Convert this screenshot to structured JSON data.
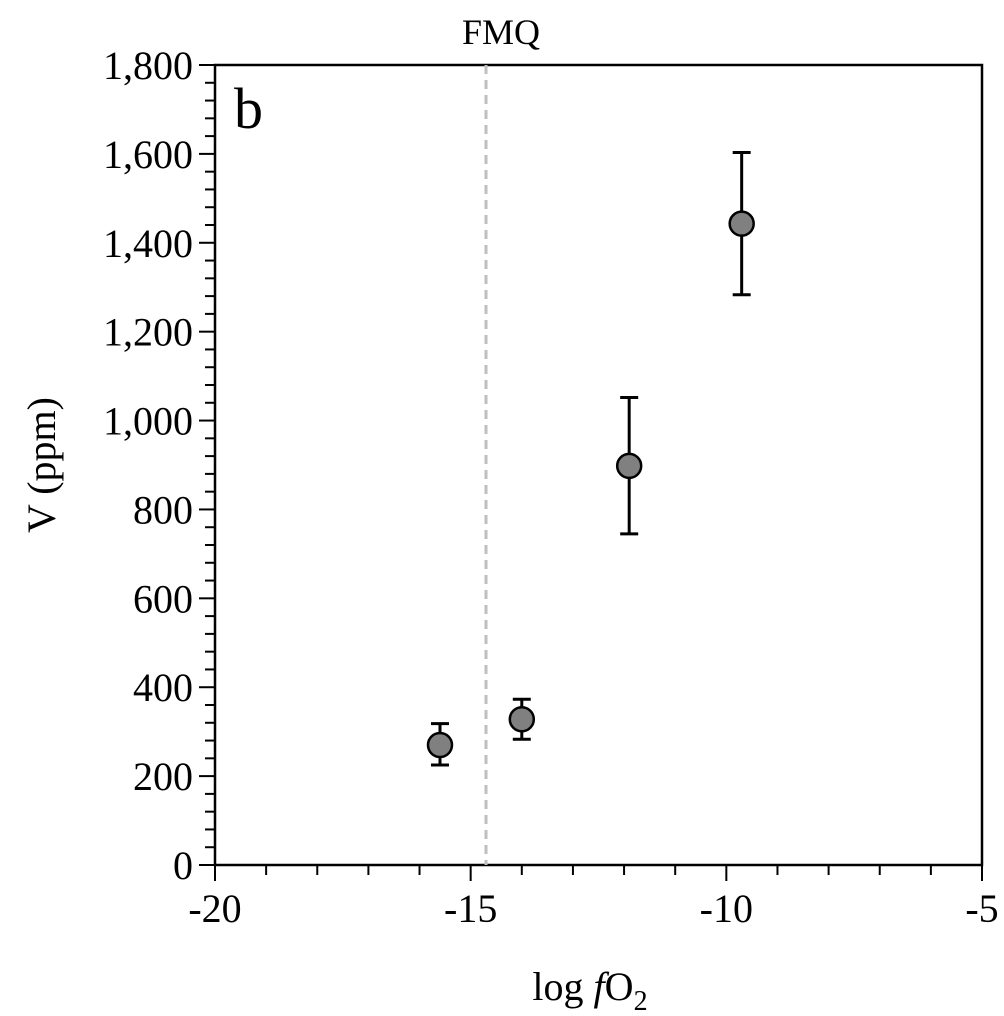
{
  "chart_data": {
    "type": "scatter",
    "panel_label": "b",
    "xlabel": {
      "prefix": "log ",
      "italic": "f",
      "main": "O",
      "sub": "2"
    },
    "ylabel": "V (ppm)",
    "xlim": [
      -20,
      -5
    ],
    "ylim": [
      0,
      1800
    ],
    "x_ticks": [
      -20,
      -15,
      -10,
      -5
    ],
    "x_tick_labels": [
      "-20",
      "-15",
      "-10",
      "-5"
    ],
    "x_minor_step": 1,
    "y_ticks": [
      0,
      200,
      400,
      600,
      800,
      1000,
      1200,
      1400,
      1600,
      1800
    ],
    "y_tick_labels": [
      "0",
      "200",
      "400",
      "600",
      "800",
      "1,000",
      "1,200",
      "1,400",
      "1,600",
      "1,800"
    ],
    "y_minor_step": 40,
    "grid": false,
    "reference_line": {
      "label": "FMQ",
      "x": -14.7,
      "style": "dashed",
      "color": "#bfbfbf"
    },
    "marker_color": "#808080",
    "series": [
      {
        "points": [
          {
            "x": -15.6,
            "y": 270,
            "err_low": 225,
            "err_high": 318
          },
          {
            "x": -14.0,
            "y": 328,
            "err_low": 283,
            "err_high": 373
          },
          {
            "x": -11.9,
            "y": 898,
            "err_low": 745,
            "err_high": 1052
          },
          {
            "x": -9.7,
            "y": 1443,
            "err_low": 1283,
            "err_high": 1603
          }
        ]
      }
    ]
  }
}
